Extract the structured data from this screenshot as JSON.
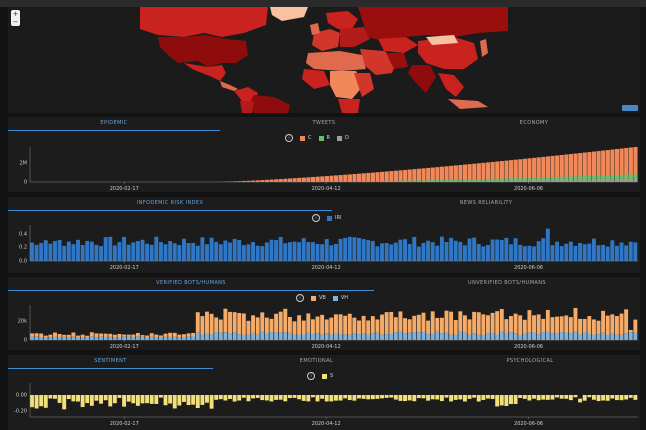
{
  "map": {
    "zoom_in": "+",
    "zoom_out": "−",
    "colors": {
      "ocean": "#1b1b1b",
      "low": "#f6c2a2",
      "mid": "#e06a4e",
      "high": "#c9221f",
      "very_high": "#9a0e0e",
      "extreme": "#5a0808"
    }
  },
  "panels": [
    {
      "tabs": [
        "EPIDEMIC",
        "TWEETS",
        "ECONOMY"
      ],
      "active_tab": 0,
      "legend": [
        {
          "label": "C",
          "color": "#f1885a"
        },
        {
          "label": "R",
          "color": "#6bbd6b"
        },
        {
          "label": "D",
          "color": "#9d9d9d"
        }
      ],
      "y_ticks": [
        "2M",
        "0"
      ],
      "x_ticks": [
        "2020-02-17",
        "2020-04-12",
        "2020-06-06"
      ]
    },
    {
      "tabs": [
        "INFODEMIC RISK INDEX",
        "NEWS RELIABILITY"
      ],
      "active_tab": 0,
      "legend": [
        {
          "label": "IRI",
          "color": "#2f77c5"
        }
      ],
      "y_ticks": [
        "0.4",
        "0.2",
        "0.0"
      ],
      "x_ticks": [
        "2020-02-17",
        "2020-04-12",
        "2020-06-06"
      ]
    },
    {
      "tabs": [
        "VERIFIED BOTS/HUMANS",
        "UNVERIFIED BOTS/HUMANS"
      ],
      "active_tab": 0,
      "legend": [
        {
          "label": "VB",
          "color": "#f5ac6a"
        },
        {
          "label": "VH",
          "color": "#7fb3dc"
        }
      ],
      "y_ticks": [
        "20k",
        "0"
      ],
      "x_ticks": [
        "2020-02-17",
        "2020-04-12",
        "2020-06-06"
      ]
    },
    {
      "tabs": [
        "SENTIMENT",
        "EMOTIONAL",
        "PSYCHOLOGICAL"
      ],
      "active_tab": 0,
      "legend": [
        {
          "label": "S",
          "color": "#f3e07a"
        }
      ],
      "y_ticks": [
        "0.00",
        "-0.20"
      ],
      "x_ticks": [
        "2020-02-17",
        "2020-04-12",
        "2020-06-06"
      ]
    }
  ],
  "chart_data": [
    {
      "type": "area",
      "ylim": [
        0,
        2800000
      ],
      "x_ticks": [
        "2020-02-17",
        "2020-04-12",
        "2020-06-06"
      ],
      "series": [
        {
          "name": "C",
          "description": "cumulative confirmed cases, near zero until ~mid-March, rising to ~2.8M by end of June"
        },
        {
          "name": "R",
          "description": "recovered, rising from ~April to ~0.6M"
        },
        {
          "name": "D",
          "description": "deaths, small, ~0.15M at end"
        }
      ]
    },
    {
      "type": "bar",
      "ylim": [
        0,
        0.5
      ],
      "series": [
        {
          "name": "IRI",
          "approx_range": [
            0.17,
            0.45
          ],
          "typical": 0.3
        }
      ]
    },
    {
      "type": "bar",
      "ylim": [
        0,
        32000
      ],
      "series": [
        {
          "name": "VB",
          "description": "stacked top; ~2k early rising to ~15-25k after March"
        },
        {
          "name": "VH",
          "description": "stacked bottom; ~2-6k"
        }
      ]
    },
    {
      "type": "bar",
      "ylim": [
        -0.3,
        0.05
      ],
      "series": [
        {
          "name": "S",
          "typical": -0.05,
          "approx_range": [
            -0.24,
            0.02
          ]
        }
      ]
    }
  ]
}
